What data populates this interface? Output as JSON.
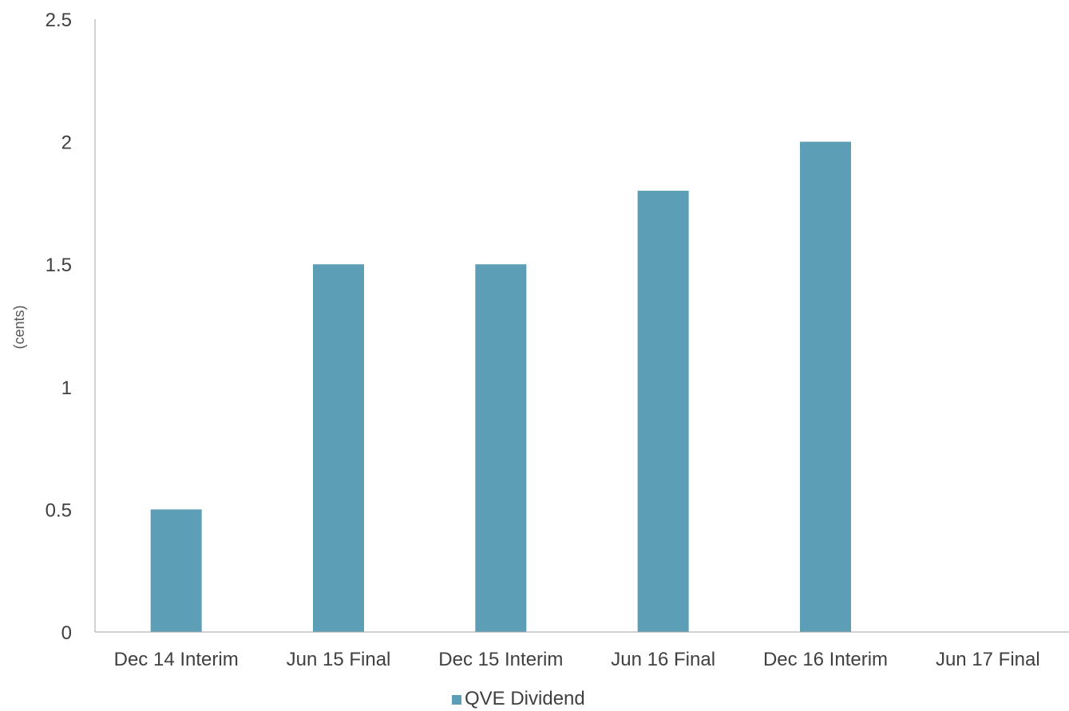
{
  "chart_data": {
    "type": "bar",
    "categories": [
      "Dec 14 Interim",
      "Jun 15 Final",
      "Dec 15 Interim",
      "Jun 16 Final",
      "Dec 16 Interim",
      "Jun 17 Final"
    ],
    "series": [
      {
        "name": "QVE Dividend",
        "values": [
          0.5,
          1.5,
          1.5,
          1.8,
          2.0,
          null
        ],
        "color": "#5b9eb5"
      }
    ],
    "title": "",
    "xlabel": "",
    "ylabel": "(cents)",
    "ylim": [
      0,
      2.5
    ],
    "yticks": [
      "0",
      "0.5",
      "1",
      "1.5",
      "2",
      "2.5"
    ],
    "grid": false,
    "legend_position": "bottom",
    "axis_color": "#a6a6a6"
  }
}
